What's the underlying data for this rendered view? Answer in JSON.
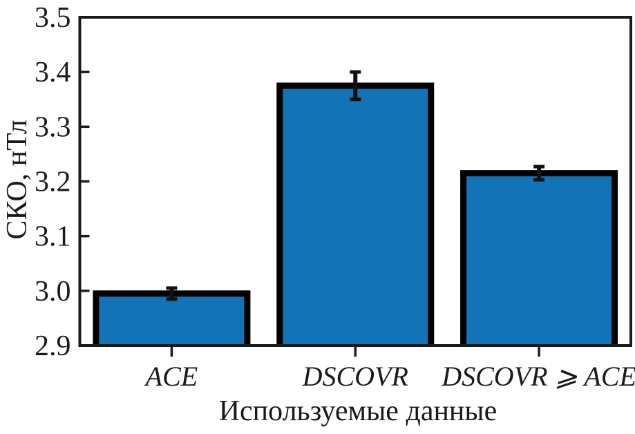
{
  "chart_data": {
    "type": "bar",
    "title": "",
    "xlabel": "Используемые данные",
    "ylabel": "СКО, нТл",
    "categories": [
      "ACE",
      "DSCOVR",
      "DSCOVR ⩾ ACE"
    ],
    "values": [
      2.995,
      3.375,
      3.215
    ],
    "errors": [
      0.01,
      0.025,
      0.012
    ],
    "ylim": [
      2.9,
      3.5
    ],
    "yticks": [
      2.9,
      3.0,
      3.1,
      3.2,
      3.3,
      3.4,
      3.5
    ],
    "ytick_decimals": 1,
    "grid": false,
    "legend": "none",
    "colors": {
      "bar_fill": "#1273b6",
      "bar_edge": "#000000",
      "axis": "#1a1a1a",
      "error_bar": "#111111",
      "background": "#ffffff"
    }
  }
}
